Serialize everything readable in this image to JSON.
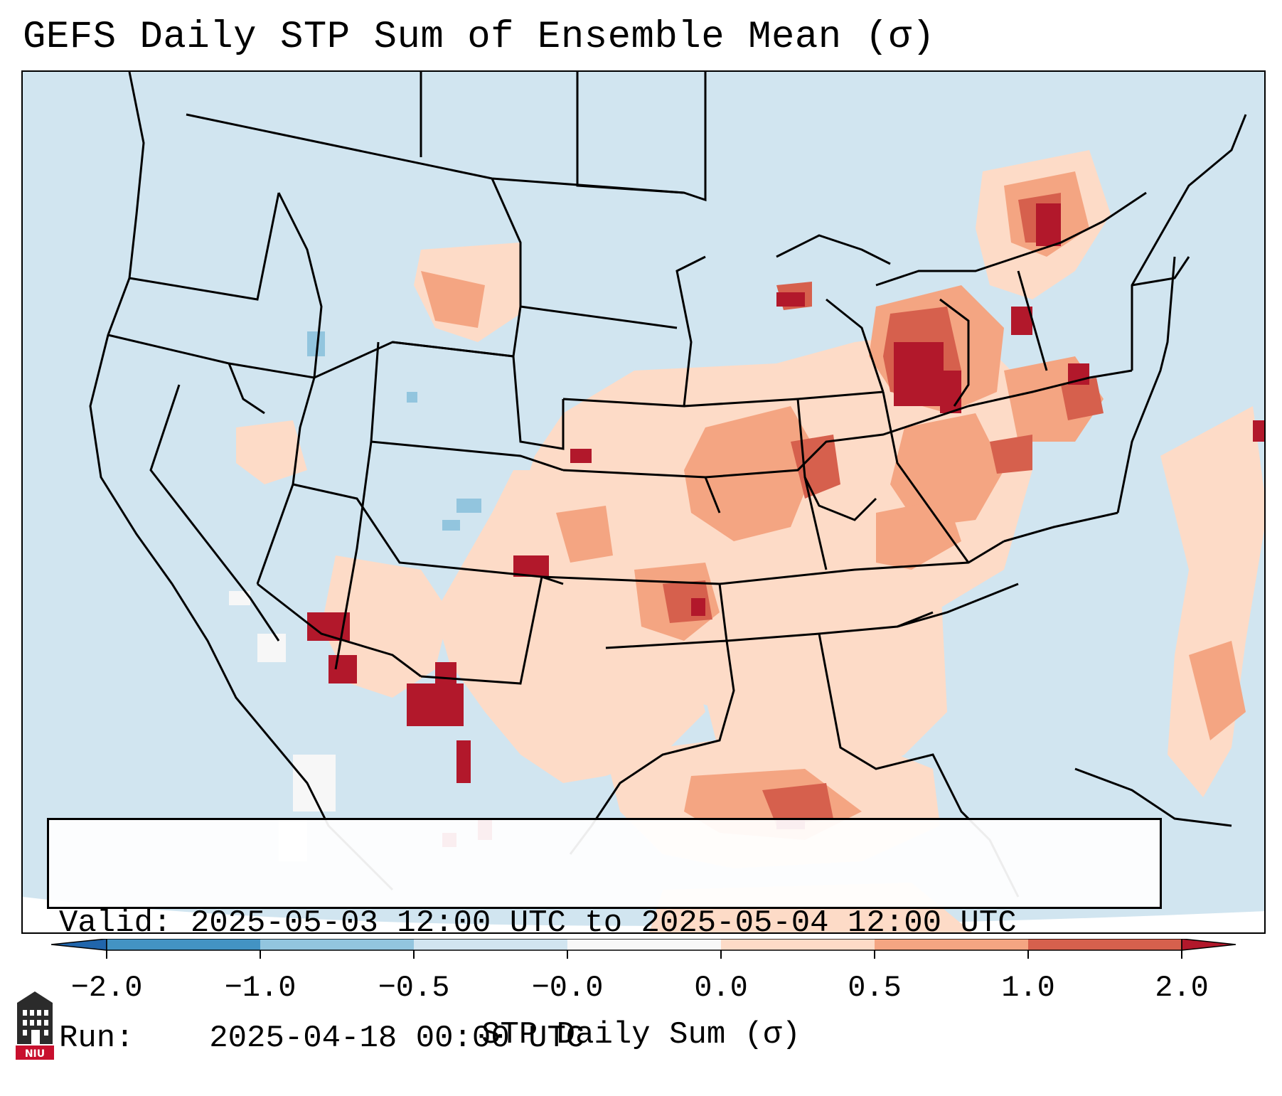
{
  "title": "GEFS Daily STP Sum of Ensemble Mean (σ)",
  "info": {
    "valid_label": "Valid:",
    "valid_value": "2025-05-03 12:00 UTC to 2025-05-04 12:00 UTC",
    "run_label": "Run:",
    "run_value": "2025-04-18 00:00 UTC"
  },
  "colorbar": {
    "label": "STP Daily Sum (σ)",
    "ticks": [
      "−2.0",
      "−1.0",
      "−0.5",
      "−0.0",
      "0.0",
      "0.5",
      "1.0",
      "2.0"
    ],
    "colors": [
      "#2166ac",
      "#4393c3",
      "#92c5de",
      "#d1e5f0",
      "#f7f7f7",
      "#fddbc7",
      "#f4a582",
      "#d6604d",
      "#b2182b"
    ]
  },
  "logo": {
    "text": "NIU",
    "name": "niu-logo"
  },
  "colors": {
    "background": "#d1e5f0",
    "light_red": "#fddbc7",
    "mid_red": "#f4a582",
    "red": "#d6604d",
    "dark_red": "#b2182b",
    "light_blue": "#92c5de",
    "white": "#f7f7f7"
  }
}
